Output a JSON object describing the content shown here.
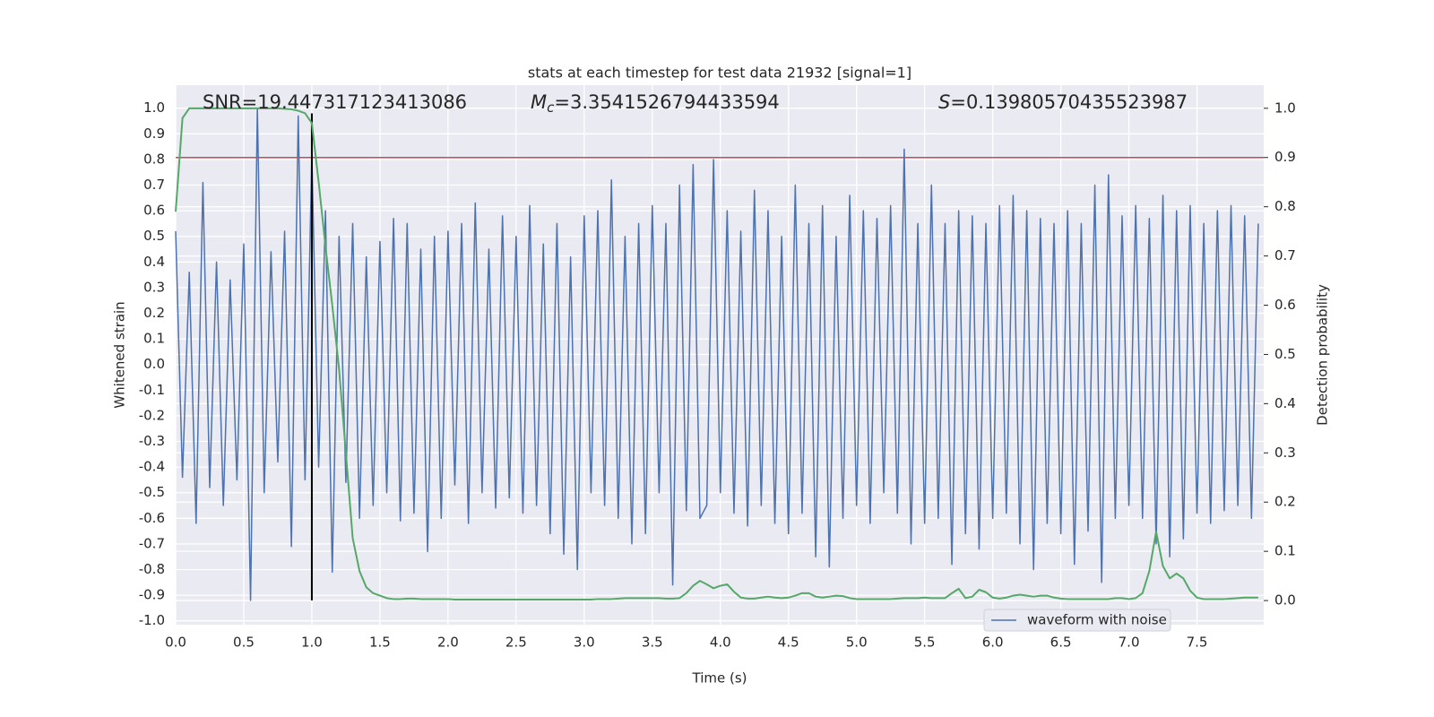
{
  "chart_data": {
    "type": "line",
    "title": "stats at each timestep for test data 21932 [signal=1]",
    "xlabel": "Time (s)",
    "ylabel": "Whitened strain",
    "y2label": "Detection probability",
    "annotations": [
      {
        "text": "SNR=19.447317123413086"
      },
      {
        "symbol": "M",
        "subscript": "c",
        "text": "=3.3541526794433594"
      },
      {
        "symbol": "S",
        "text": "=0.13980570435523987"
      }
    ],
    "xlim": [
      0,
      7.99
    ],
    "ylim": [
      -1.015,
      1.09
    ],
    "y2lim": [
      -0.049,
      1.047
    ],
    "xticks": [
      {
        "value": 0,
        "label": "0.0"
      },
      0.5,
      {
        "value": 1,
        "label": "1.0"
      },
      1.5,
      {
        "value": 2,
        "label": "2.0"
      },
      2.5,
      {
        "value": 3,
        "label": "3.0"
      },
      3.5,
      {
        "value": 4,
        "label": "4.0"
      },
      4.5,
      {
        "value": 5,
        "label": "5.0"
      },
      5.5,
      {
        "value": 6,
        "label": "6.0"
      },
      6.5,
      {
        "value": 7,
        "label": "7.0"
      },
      7.5
    ],
    "yticks": [
      {
        "value": 1,
        "label": "1.0"
      },
      0.9,
      0.8,
      0.7,
      0.6,
      0.5,
      0.4,
      0.3,
      0.2,
      0.1,
      {
        "value": 0,
        "label": "0.0"
      },
      -0.1,
      -0.2,
      -0.3,
      -0.4,
      -0.5,
      -0.6,
      -0.7,
      -0.8,
      -0.9,
      {
        "value": -1,
        "label": "-1.0"
      }
    ],
    "y2ticks": [
      {
        "value": 0,
        "label": "0.0"
      },
      0.1,
      0.2,
      0.3,
      0.4,
      0.5,
      0.6,
      0.7,
      0.8,
      0.9,
      {
        "value": 1,
        "label": "1.0"
      }
    ],
    "grid": true,
    "legend": "lower right",
    "threshold": {
      "value": 0.9,
      "axis": "y2",
      "color": "#c44e52"
    },
    "vline": {
      "x": 1.0,
      "ymin": -0.92,
      "ymax": 0.98,
      "color": "#000000"
    },
    "x": [
      0,
      0.05,
      0.1,
      0.15,
      0.2,
      0.25,
      0.3,
      0.35,
      0.4,
      0.45,
      0.5,
      0.55,
      0.6,
      0.65,
      0.7,
      0.75,
      0.8,
      0.85,
      0.9,
      0.95,
      1,
      1.05,
      1.1,
      1.15,
      1.2,
      1.25,
      1.3,
      1.35,
      1.4,
      1.45,
      1.5,
      1.55,
      1.6,
      1.65,
      1.7,
      1.75,
      1.8,
      1.85,
      1.9,
      1.95,
      2,
      2.05,
      2.1,
      2.15,
      2.2,
      2.25,
      2.3,
      2.35,
      2.4,
      2.45,
      2.5,
      2.55,
      2.6,
      2.65,
      2.7,
      2.75,
      2.8,
      2.85,
      2.9,
      2.95,
      3,
      3.05,
      3.1,
      3.15,
      3.2,
      3.25,
      3.3,
      3.35,
      3.4,
      3.45,
      3.5,
      3.55,
      3.6,
      3.65,
      3.7,
      3.75,
      3.8,
      3.85,
      3.9,
      3.95,
      4,
      4.05,
      4.1,
      4.15,
      4.2,
      4.25,
      4.3,
      4.35,
      4.4,
      4.45,
      4.5,
      4.55,
      4.6,
      4.65,
      4.7,
      4.75,
      4.8,
      4.85,
      4.9,
      4.95,
      5,
      5.05,
      5.1,
      5.15,
      5.2,
      5.25,
      5.3,
      5.35,
      5.4,
      5.45,
      5.5,
      5.55,
      5.6,
      5.65,
      5.7,
      5.75,
      5.8,
      5.85,
      5.9,
      5.95,
      6,
      6.05,
      6.1,
      6.15,
      6.2,
      6.25,
      6.3,
      6.35,
      6.4,
      6.45,
      6.5,
      6.55,
      6.6,
      6.65,
      6.7,
      6.75,
      6.8,
      6.85,
      6.9,
      6.95,
      7,
      7.05,
      7.1,
      7.15,
      7.2,
      7.25,
      7.3,
      7.35,
      7.4,
      7.45,
      7.5,
      7.55,
      7.6,
      7.65,
      7.7,
      7.75,
      7.8,
      7.85,
      7.9,
      7.95
    ],
    "series": [
      {
        "name": "waveform with noise",
        "color": "#4c72b0",
        "values": [
          0.52,
          -0.44,
          0.36,
          -0.62,
          0.71,
          -0.48,
          0.4,
          -0.55,
          0.33,
          -0.45,
          0.47,
          -0.92,
          1.0,
          -0.5,
          0.44,
          -0.38,
          0.52,
          -0.71,
          0.97,
          -0.45,
          0.82,
          -0.4,
          0.6,
          -0.81,
          0.5,
          -0.46,
          0.55,
          -0.6,
          0.42,
          -0.55,
          0.48,
          -0.5,
          0.57,
          -0.61,
          0.55,
          -0.58,
          0.45,
          -0.73,
          0.5,
          -0.6,
          0.52,
          -0.47,
          0.55,
          -0.62,
          0.63,
          -0.5,
          0.45,
          -0.56,
          0.58,
          -0.52,
          0.5,
          -0.58,
          0.62,
          -0.55,
          0.47,
          -0.66,
          0.55,
          -0.74,
          0.42,
          -0.8,
          0.58,
          -0.5,
          0.6,
          -0.55,
          0.72,
          -0.6,
          0.5,
          -0.7,
          0.55,
          -0.66,
          0.62,
          -0.5,
          0.55,
          -0.86,
          0.7,
          -0.57,
          0.78,
          -0.6,
          -0.55,
          0.8,
          -0.5,
          0.6,
          -0.58,
          0.52,
          -0.63,
          0.68,
          -0.55,
          0.6,
          -0.62,
          0.5,
          -0.66,
          0.7,
          -0.58,
          0.55,
          -0.75,
          0.62,
          -0.79,
          0.5,
          -0.6,
          0.66,
          -0.55,
          0.6,
          -0.62,
          0.57,
          -0.5,
          0.62,
          -0.58,
          0.84,
          -0.7,
          0.55,
          -0.62,
          0.7,
          -0.6,
          0.55,
          -0.78,
          0.6,
          -0.66,
          0.58,
          -0.72,
          0.55,
          -0.6,
          0.62,
          -0.58,
          0.66,
          -0.7,
          0.6,
          -0.8,
          0.57,
          -0.62,
          0.55,
          -0.66,
          0.6,
          -0.78,
          0.55,
          -0.65,
          0.7,
          -0.85,
          0.74,
          -0.6,
          0.58,
          -0.55,
          0.62,
          -0.6,
          0.57,
          -0.7,
          0.66,
          -0.75,
          0.6,
          -0.68,
          0.62,
          -0.58,
          0.55,
          -0.62,
          0.6,
          -0.57,
          0.62,
          -0.55,
          0.58,
          -0.6,
          0.55
        ]
      },
      {
        "color": "#55a868",
        "axis": "y2",
        "values": [
          0.79,
          0.98,
          1.0,
          1.0,
          1.0,
          1.0,
          1.0,
          1.0,
          1.0,
          1.0,
          1.0,
          1.0,
          1.0,
          1.0,
          1.0,
          1.0,
          0.999,
          0.998,
          0.995,
          0.99,
          0.97,
          0.85,
          0.72,
          0.6,
          0.47,
          0.3,
          0.127,
          0.06,
          0.027,
          0.015,
          0.01,
          0.005,
          0.003,
          0.003,
          0.004,
          0.004,
          0.003,
          0.003,
          0.003,
          0.003,
          0.003,
          0.002,
          0.002,
          0.002,
          0.002,
          0.002,
          0.002,
          0.002,
          0.002,
          0.002,
          0.002,
          0.002,
          0.002,
          0.002,
          0.002,
          0.002,
          0.002,
          0.002,
          0.002,
          0.002,
          0.002,
          0.002,
          0.003,
          0.003,
          0.003,
          0.004,
          0.005,
          0.005,
          0.005,
          0.005,
          0.005,
          0.005,
          0.004,
          0.004,
          0.005,
          0.015,
          0.03,
          0.04,
          0.033,
          0.025,
          0.03,
          0.033,
          0.018,
          0.006,
          0.004,
          0.004,
          0.006,
          0.008,
          0.006,
          0.005,
          0.006,
          0.01,
          0.015,
          0.015,
          0.008,
          0.006,
          0.008,
          0.01,
          0.009,
          0.005,
          0.003,
          0.003,
          0.003,
          0.003,
          0.003,
          0.003,
          0.004,
          0.005,
          0.005,
          0.005,
          0.006,
          0.005,
          0.005,
          0.005,
          0.015,
          0.024,
          0.005,
          0.008,
          0.022,
          0.017,
          0.006,
          0.004,
          0.006,
          0.01,
          0.012,
          0.01,
          0.008,
          0.01,
          0.01,
          0.006,
          0.004,
          0.003,
          0.003,
          0.003,
          0.003,
          0.003,
          0.003,
          0.003,
          0.005,
          0.005,
          0.003,
          0.005,
          0.015,
          0.06,
          0.14,
          0.07,
          0.045,
          0.055,
          0.045,
          0.02,
          0.006,
          0.003,
          0.003,
          0.003,
          0.003,
          0.004,
          0.005,
          0.006,
          0.006,
          0.006
        ]
      }
    ]
  }
}
